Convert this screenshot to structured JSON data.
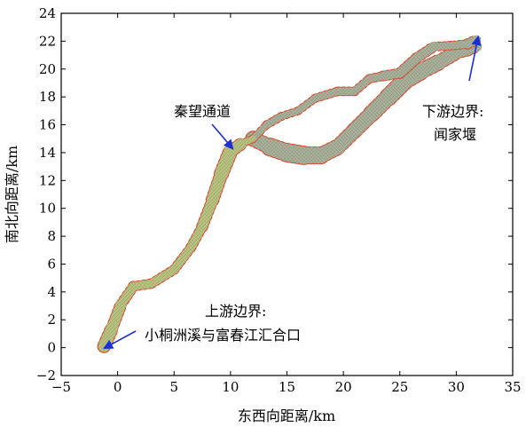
{
  "chart_data": {
    "type": "map",
    "xlabel": "东西向距离/km",
    "ylabel": "南北向距离/km",
    "xlim": [
      -5,
      35
    ],
    "ylim": [
      -2,
      24
    ],
    "xticks": [
      "−5",
      "0",
      "5",
      "10",
      "15",
      "20",
      "25",
      "30",
      "35"
    ],
    "yticks": [
      "−2",
      "0",
      "2",
      "4",
      "6",
      "8",
      "10",
      "12",
      "14",
      "16",
      "18",
      "20",
      "22",
      "24"
    ],
    "grid": false,
    "annotations": [
      {
        "id": "qinwang",
        "text": "秦望通道",
        "x": 10.1,
        "y": 14.5
      },
      {
        "id": "downstream_1",
        "text": "下游边界:",
        "x": 31.8,
        "y": 22.4
      },
      {
        "id": "downstream_2",
        "text": "闻家堰"
      },
      {
        "id": "upstream_1",
        "text": "上游边界:",
        "x": -1.2,
        "y": 0.0
      },
      {
        "id": "upstream_2",
        "text": "小桐洲溪与富春江汇合口"
      }
    ],
    "colors": {
      "mesh": "#a6ad92",
      "mesh_upper": "#b9c27e",
      "boundary_dots": "#d9472b",
      "arrow": "#1c2fd6"
    },
    "river_main": {
      "centerline": [
        [
          -1.2,
          0.1
        ],
        [
          -0.5,
          1.4
        ],
        [
          0.3,
          3.1
        ],
        [
          1.4,
          4.4
        ],
        [
          3,
          4.6
        ],
        [
          5,
          5.6
        ],
        [
          6.5,
          7.2
        ],
        [
          7.5,
          8.7
        ],
        [
          8.4,
          10.6
        ],
        [
          9.2,
          12.5
        ],
        [
          10,
          14.1
        ],
        [
          10.9,
          14.6
        ],
        [
          12,
          15
        ]
      ],
      "width": [
        0.9,
        0.8,
        0.7,
        0.6,
        0.6,
        0.6,
        0.6,
        0.65,
        0.8,
        0.9,
        1.0,
        0.6,
        0.3
      ]
    },
    "river_south": {
      "centerline": [
        [
          12,
          15
        ],
        [
          13.5,
          14.4
        ],
        [
          15,
          14
        ],
        [
          16.5,
          13.8
        ],
        [
          18,
          13.8
        ],
        [
          19.5,
          14.4
        ],
        [
          21,
          15.6
        ],
        [
          22.5,
          16.8
        ],
        [
          24,
          18
        ],
        [
          25.5,
          19.2
        ],
        [
          27,
          19.9
        ],
        [
          28.5,
          20.5
        ],
        [
          30,
          21.2
        ],
        [
          31,
          21.4
        ],
        [
          31.8,
          21.6
        ]
      ],
      "width": [
        0.9,
        1.1,
        1.3,
        1.2,
        1.1,
        1.0,
        1.0,
        1.05,
        1.15,
        1.2,
        1.1,
        1.0,
        0.9,
        0.8,
        0.7
      ]
    },
    "river_north": {
      "centerline": [
        [
          12,
          15
        ],
        [
          13.2,
          16
        ],
        [
          14.5,
          16.6
        ],
        [
          16,
          17
        ],
        [
          17.5,
          17.9
        ],
        [
          19.5,
          18.4
        ],
        [
          21,
          18.4
        ],
        [
          22.3,
          19.3
        ],
        [
          23.5,
          19.5
        ],
        [
          25,
          19.7
        ],
        [
          26.5,
          20.8
        ],
        [
          28,
          21.6
        ],
        [
          29.8,
          21.7
        ],
        [
          31,
          21.8
        ],
        [
          31.8,
          22.1
        ]
      ],
      "width": [
        0.4,
        0.5,
        0.5,
        0.45,
        0.5,
        0.55,
        0.55,
        0.5,
        0.6,
        0.65,
        0.7,
        0.6,
        0.5,
        0.6,
        0.7
      ]
    }
  }
}
